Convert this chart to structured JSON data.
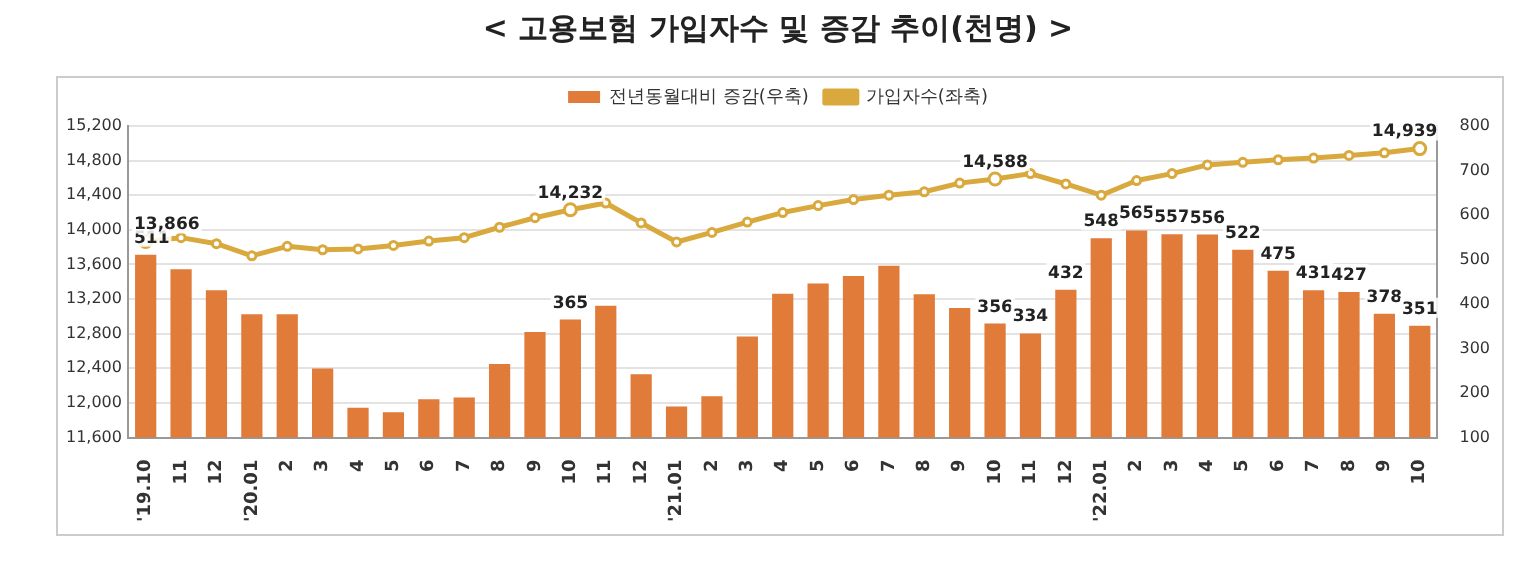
{
  "chart_data": {
    "type": "bar",
    "title": "< 고용보험 가입자수 및 증감 추이(천명) >",
    "categories": [
      "'19.10",
      "11",
      "12",
      "'20.01",
      "2",
      "3",
      "4",
      "5",
      "6",
      "7",
      "8",
      "9",
      "10",
      "11",
      "12",
      "'21.01",
      "2",
      "3",
      "4",
      "5",
      "6",
      "7",
      "8",
      "9",
      "10",
      "11",
      "12",
      "'22.01",
      "2",
      "3",
      "4",
      "5",
      "6",
      "7",
      "8",
      "9",
      "10"
    ],
    "series": [
      {
        "name": "전년동월대비 증감(우축)",
        "axis": "y2",
        "color": "#e07b39",
        "values": [
          511,
          478,
          431,
          377,
          377,
          255,
          167,
          157,
          186,
          190,
          265,
          337,
          365,
          396,
          242,
          170,
          193,
          327,
          423,
          446,
          463,
          486,
          422,
          391,
          356,
          334,
          432,
          548,
          565,
          557,
          556,
          522,
          475,
          431,
          427,
          378,
          351
        ],
        "value_labels": [
          "511",
          null,
          null,
          null,
          null,
          null,
          null,
          null,
          null,
          null,
          null,
          null,
          "365",
          null,
          null,
          null,
          null,
          null,
          null,
          null,
          null,
          null,
          null,
          null,
          "356",
          "334",
          "432",
          "548",
          "565",
          "557",
          "556",
          "522",
          "475",
          "431",
          "427",
          "378",
          "351"
        ]
      },
      {
        "name": "가입자수(좌축)",
        "type": "line",
        "axis": "y",
        "color": "#d9a93e",
        "marker": "circle",
        "values": [
          13866,
          13910,
          13840,
          13700,
          13810,
          13770,
          13780,
          13820,
          13870,
          13910,
          14030,
          14140,
          14232,
          14310,
          14080,
          13860,
          13970,
          14090,
          14200,
          14280,
          14350,
          14400,
          14440,
          14540,
          14588,
          14650,
          14530,
          14400,
          14570,
          14650,
          14750,
          14780,
          14810,
          14830,
          14860,
          14890,
          14939
        ],
        "value_labels": [
          "13,866",
          null,
          null,
          null,
          null,
          null,
          null,
          null,
          null,
          null,
          null,
          null,
          "14,232",
          null,
          null,
          null,
          null,
          null,
          null,
          null,
          null,
          null,
          null,
          null,
          "14,588",
          null,
          null,
          null,
          null,
          null,
          null,
          null,
          null,
          null,
          null,
          null,
          "14,939"
        ]
      }
    ],
    "ylim": [
      11600,
      15200
    ],
    "yticks": [
      {
        "value": 11600,
        "label": "11,600"
      },
      {
        "value": 12000,
        "label": "12,000"
      },
      {
        "value": 12400,
        "label": "12,400"
      },
      {
        "value": 12800,
        "label": "12,800"
      },
      {
        "value": 13200,
        "label": "13,200"
      },
      {
        "value": 13600,
        "label": "13,600"
      },
      {
        "value": 14000,
        "label": "14,000"
      },
      {
        "value": 14400,
        "label": "14,400"
      },
      {
        "value": 14800,
        "label": "14,800"
      },
      {
        "value": 15200,
        "label": "15,200"
      }
    ],
    "y2lim": [
      100,
      800
    ],
    "y2ticks": [
      100,
      200,
      300,
      400,
      500,
      600,
      700,
      800
    ],
    "grid": "y",
    "legend": "top"
  }
}
